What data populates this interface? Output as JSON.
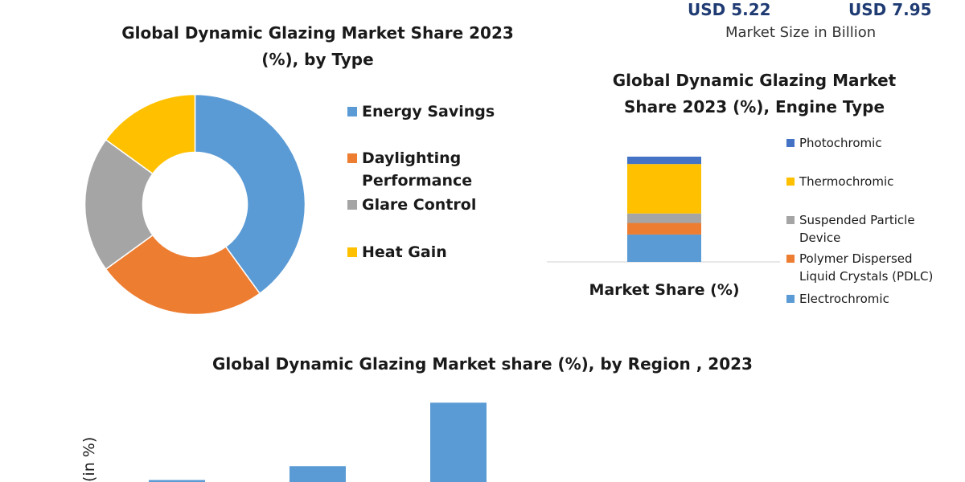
{
  "market_size": {
    "value_start": "USD 5.22",
    "value_end": "USD 7.95",
    "caption": "Market Size in Billion"
  },
  "colors": {
    "blue": "#5b9bd5",
    "orange": "#ed7d31",
    "gray": "#a5a5a5",
    "yellow": "#ffc000",
    "dark_blue": "#4472c4",
    "title_blue": "#1f3b73"
  },
  "chart_data": [
    {
      "type": "pie",
      "variant": "donut",
      "title": "Global Dynamic Glazing Market Share 2023 (%), by Type",
      "title_lines": [
        "Global Dynamic Glazing Market Share 2023",
        "(%), by Type"
      ],
      "categories": [
        "Energy Savings",
        "Daylighting Performance",
        "Glare Control",
        "Heat Gain"
      ],
      "legend_labels": [
        [
          "Energy Savings"
        ],
        [
          "Daylighting",
          "Performance"
        ],
        [
          "Glare Control"
        ],
        [
          "Heat Gain"
        ]
      ],
      "values": [
        40,
        25,
        20,
        15
      ],
      "colors": [
        "#5b9bd5",
        "#ed7d31",
        "#a5a5a5",
        "#ffc000"
      ],
      "legend_position": "right"
    },
    {
      "type": "bar",
      "variant": "stacked",
      "title": "Global  Dynamic Glazing Market Share 2023 (%), Engine Type",
      "title_lines": [
        "Global  Dynamic Glazing Market",
        "Share 2023 (%), Engine Type"
      ],
      "categories": [
        "Market Share (%)"
      ],
      "series": [
        {
          "name": "Electrochromic",
          "values": [
            26
          ],
          "color": "#5b9bd5"
        },
        {
          "name": "Polymer Dispersed Liquid Crystals (PDLC)",
          "values": [
            11
          ],
          "color": "#ed7d31"
        },
        {
          "name": "Suspended Particle Device",
          "values": [
            9
          ],
          "color": "#a5a5a5"
        },
        {
          "name": "Thermochromic",
          "values": [
            47
          ],
          "color": "#ffc000"
        },
        {
          "name": "Photochromic",
          "values": [
            7
          ],
          "color": "#4472c4"
        }
      ],
      "legend_entries": [
        {
          "lines": [
            "Photochromic"
          ],
          "color": "#4472c4"
        },
        {
          "lines": [
            "Thermochromic"
          ],
          "color": "#ffc000"
        },
        {
          "lines": [
            "Suspended Particle",
            "Device"
          ],
          "color": "#a5a5a5"
        },
        {
          "lines": [
            "Polymer Dispersed",
            "Liquid Crystals (PDLC)"
          ],
          "color": "#ed7d31"
        },
        {
          "lines": [
            "Electrochromic"
          ],
          "color": "#5b9bd5"
        }
      ],
      "ylim": [
        0,
        100
      ],
      "legend_position": "right"
    },
    {
      "type": "bar",
      "title": "Global Dynamic Glazing Market share (%), by Region , 2023",
      "ylabel": "(in %)",
      "values": [
        2,
        16,
        80
      ],
      "ylim": [
        0,
        100
      ],
      "color": "#5b9bd5"
    }
  ]
}
